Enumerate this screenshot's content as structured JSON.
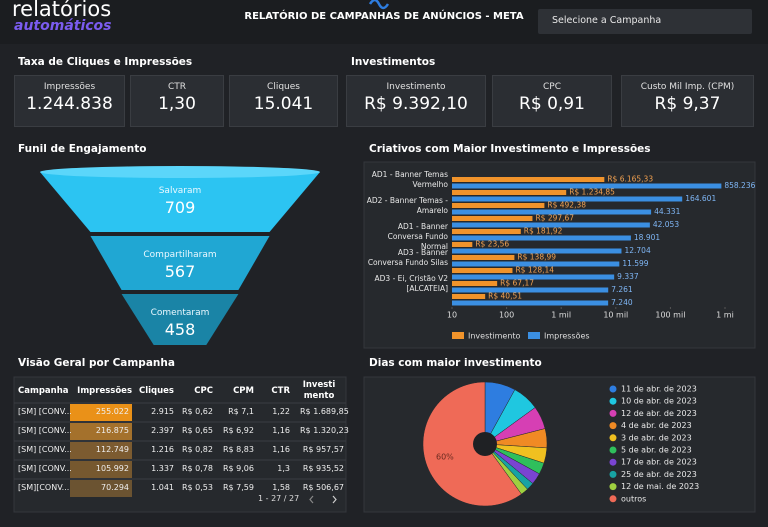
{
  "header": {
    "logo_top": "relatórios",
    "logo_bottom": "automáticos",
    "title": "RELATÓRIO DE CAMPANHAS DE ANÚNCIOS - META",
    "dropdown": "Selecione a Campanha"
  },
  "sections": {
    "clicks": "Taxa de Cliques e Impressões",
    "investments": "Investimentos",
    "table": "Visão Geral por Campanha"
  },
  "kpis": [
    {
      "label": "Impressões",
      "value": "1.244.838"
    },
    {
      "label": "CTR",
      "value": "1,30"
    },
    {
      "label": "Cliques",
      "value": "15.041"
    },
    {
      "label": "Investimento",
      "value": "R$ 9.392,10"
    },
    {
      "label": "CPC",
      "value": "R$ 0,91"
    },
    {
      "label": "Custo Mil Imp. (CPM)",
      "value": "R$ 9,37"
    }
  ],
  "table": {
    "columns": [
      "Campanha",
      "Impressões",
      "Cliques",
      "CPC",
      "CPM",
      "CTR",
      "Investimento"
    ],
    "rows": [
      [
        "[SM] [CONV...",
        "255.022",
        "2.915",
        "R$ 0,62",
        "R$ 7,1",
        "1,22",
        "R$ 1.689,85"
      ],
      [
        "[SM] [CONV...",
        "216.875",
        "2.397",
        "R$ 0,65",
        "R$ 6,92",
        "1,16",
        "R$ 1.320,23"
      ],
      [
        "[SM] [CONV...",
        "112.749",
        "1.216",
        "R$ 0,82",
        "R$ 8,83",
        "1,16",
        "R$ 957,57"
      ],
      [
        "[SM] [CONV...",
        "105.992",
        "1.337",
        "R$ 0,78",
        "R$ 9,06",
        "1,3",
        "R$ 935,52"
      ],
      [
        "[SM][CONV...",
        "70.294",
        "1.041",
        "R$ 0,53",
        "R$ 7,59",
        "1,58",
        "R$ 506,67"
      ]
    ],
    "pagination": "1 - 27 / 27"
  },
  "chart_data": [
    {
      "type": "funnel",
      "title": "Funil de Engajamento",
      "categories": [
        "Salvaram",
        "Compartilharam",
        "Comentaram"
      ],
      "values": [
        709,
        567,
        458
      ],
      "colors": [
        "#2cc4f2",
        "#20a7d3",
        "#1a84a6"
      ]
    },
    {
      "type": "bar",
      "orientation": "horizontal",
      "title": "Criativos com Maior Investimento e Impressões",
      "categories": [
        "AD1 - Banner Temas Vermelho",
        null,
        "AD2 - Banner Temas - Amarelo",
        null,
        "AD1 - Banner Conversa Fundo Normal",
        null,
        "AD3 - Banner Conversa Fundo Silas",
        null,
        "AD3 - Ei, Cristão V2 [ALCATEIA]",
        null
      ],
      "series": [
        {
          "name": "Investimento",
          "color": "#f0932b",
          "values": [
            6165.33,
            1234.85,
            492.38,
            297.67,
            181.92,
            23.56,
            138.99,
            128.14,
            67.17,
            40.51
          ],
          "value_labels": [
            "R$ 6.165,33",
            "R$ 1.234,85",
            "R$ 492,38",
            "R$ 297,67",
            "R$ 181,92",
            "R$ 23,56",
            "R$ 138,99",
            "R$ 128,14",
            "R$ 67,17",
            "R$ 40,51"
          ]
        },
        {
          "name": "Impressões",
          "color": "#3b8fe2",
          "values": [
            858236,
            164601,
            44331,
            42053,
            18901,
            12704,
            11599,
            9337,
            7261,
            7240
          ],
          "value_labels": [
            "858.236",
            "164.601",
            "44.331",
            "42.053",
            "18.901",
            "12.704",
            "11.599",
            "9.337",
            "7.261",
            "7.240"
          ]
        }
      ],
      "xscale": "log",
      "xlim": [
        10,
        1000000
      ],
      "xticks": [
        10,
        100,
        {
          "value": 1000,
          "label": "1 mil"
        },
        {
          "value": 10000,
          "label": "10 mil"
        },
        {
          "value": 100000,
          "label": "100 mil"
        },
        {
          "value": 1000000,
          "label": "1 mi"
        }
      ],
      "grid": false,
      "legend": "bottom"
    },
    {
      "type": "pie",
      "title": "Dias com maior investimento",
      "donut": true,
      "legend": "right",
      "categories": [
        "11 de abr. de 2023",
        "10 de abr. de 2023",
        "12 de abr. de 2023",
        "4 de abr. de 2023",
        "3 de abr. de 2023",
        "5 de abr. de 2023",
        "17 de abr. de 2023",
        "25 de abr. de 2023",
        "12 de mai. de 2023",
        "outros"
      ],
      "values": [
        8,
        7,
        6,
        5,
        4,
        3,
        3,
        2,
        2,
        60
      ],
      "value_labels": [
        null,
        null,
        null,
        null,
        null,
        null,
        null,
        null,
        null,
        "60%"
      ],
      "colors": [
        "#2e7de0",
        "#1fc7e0",
        "#d63fb4",
        "#f08a24",
        "#f0c020",
        "#2fbf5c",
        "#7a44d2",
        "#17a3a3",
        "#9fd040",
        "#ef6a57"
      ]
    }
  ]
}
